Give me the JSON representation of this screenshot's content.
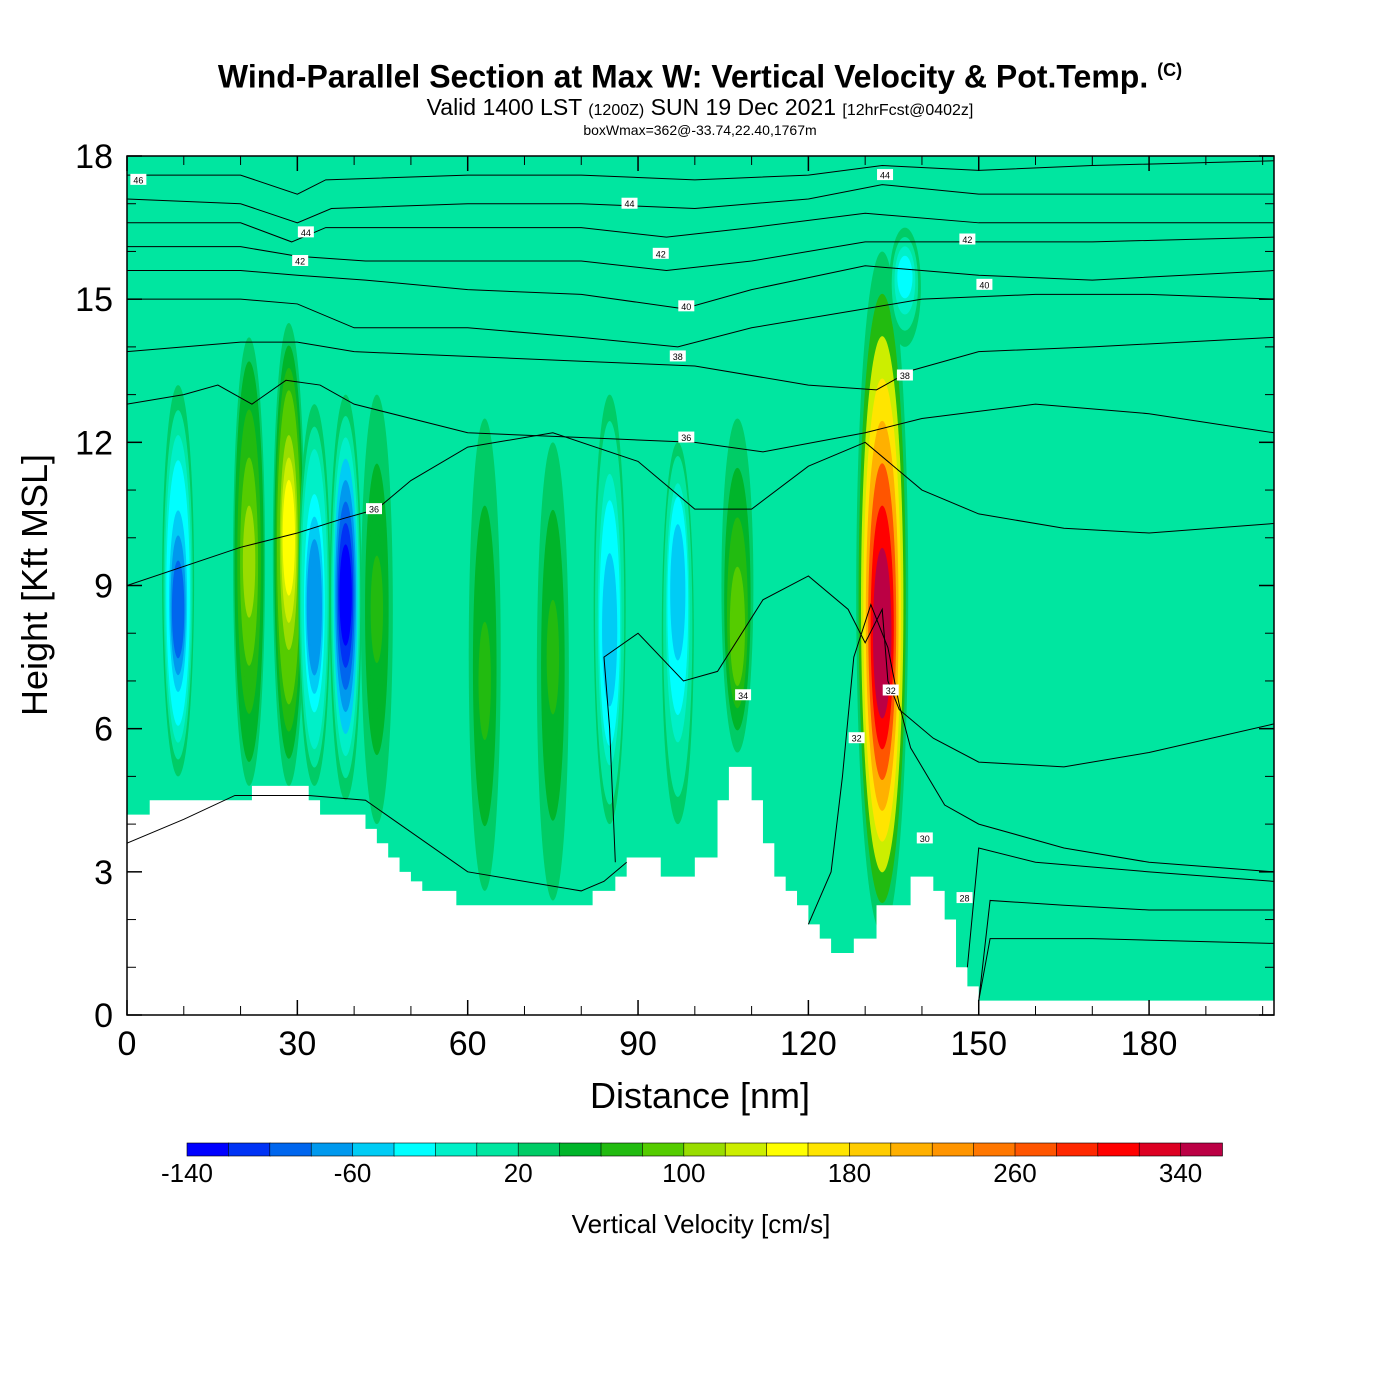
{
  "title": {
    "main": "Wind-Parallel Section at Max W: Vertical Velocity & Pot.Temp.",
    "copyright": "(C)",
    "valid_prefix": "Valid 1400 LST",
    "utc": "(1200Z)",
    "date": "SUN 19 Dec 2021",
    "forecast": "[12hrFcst@0402z]",
    "boxwmax": "boxWmax=362@-33.74,22.40,1767m"
  },
  "chart_data": {
    "type": "heatmap",
    "subtype": "cross-section contour fill with line contours",
    "xlabel": "Distance [nm]",
    "ylabel": "Height [Kft MSL]",
    "xlim": [
      0,
      202
    ],
    "ylim": [
      0,
      18
    ],
    "x_ticks": [
      "0",
      "30",
      "60",
      "90",
      "120",
      "150",
      "180"
    ],
    "y_ticks": [
      "0",
      "3",
      "6",
      "9",
      "12",
      "15",
      "18"
    ],
    "colorbar": {
      "label": "Vertical Velocity [cm/s]",
      "tick_labels": [
        "-140",
        "-60",
        "20",
        "100",
        "180",
        "260",
        "340"
      ],
      "tick_values": [
        -140,
        -60,
        20,
        100,
        180,
        260,
        340
      ],
      "min": -140,
      "step": 20,
      "colors": [
        "#0000ff",
        "#0033f5",
        "#0066ee",
        "#0099ee",
        "#00ccf5",
        "#00ffff",
        "#00f0c8",
        "#00e6a0",
        "#00cc66",
        "#00b52a",
        "#22bb10",
        "#55cc00",
        "#99dd00",
        "#ccee00",
        "#ffff00",
        "#ffe500",
        "#ffcc00",
        "#ffb000",
        "#ff9500",
        "#ff7700",
        "#ff5500",
        "#ff2800",
        "#ff0000",
        "#dd0022",
        "#bb0044"
      ],
      "background_color": "#00e6a0"
    },
    "vertical_velocity_features": [
      {
        "x": 9,
        "z_bottom": 5.0,
        "z_top": 13.2,
        "z_peak": 8.5,
        "w": -90
      },
      {
        "x": 21.5,
        "z_bottom": 4.8,
        "z_top": 14.2,
        "z_peak": 9.5,
        "w": 100
      },
      {
        "x": 28.5,
        "z_bottom": 4.8,
        "z_top": 14.5,
        "z_peak": 10.0,
        "w": 150
      },
      {
        "x": 33,
        "z_bottom": 4.8,
        "z_top": 12.8,
        "z_peak": 8.5,
        "w": -80
      },
      {
        "x": 38.5,
        "z_bottom": 4.5,
        "z_top": 13.0,
        "z_peak": 8.8,
        "w": -140
      },
      {
        "x": 44,
        "z_bottom": 4.0,
        "z_top": 13.0,
        "z_peak": 8.5,
        "w": 60
      },
      {
        "x": 63,
        "z_bottom": 2.6,
        "z_top": 12.5,
        "z_peak": 7.0,
        "w": 60
      },
      {
        "x": 75,
        "z_bottom": 2.4,
        "z_top": 12.0,
        "z_peak": 7.5,
        "w": 60
      },
      {
        "x": 85,
        "z_bottom": 4.0,
        "z_top": 13.0,
        "z_peak": 8.0,
        "w": -60
      },
      {
        "x": 97,
        "z_bottom": 4.0,
        "z_top": 12.0,
        "z_peak": 9.0,
        "w": -60
      },
      {
        "x": 107.5,
        "z_bottom": 5.5,
        "z_top": 12.5,
        "z_peak": 8.0,
        "w": 90
      },
      {
        "x": 133,
        "z_bottom": 1.7,
        "z_top": 16.0,
        "z_peak": 8.0,
        "w": 362
      },
      {
        "x": 137,
        "z_bottom": 14.0,
        "z_top": 16.5,
        "z_peak": 15.5,
        "w": -40
      }
    ],
    "terrain": [
      [
        0,
        4.2
      ],
      [
        4,
        4.2
      ],
      [
        4,
        4.5
      ],
      [
        22,
        4.5
      ],
      [
        22,
        4.8
      ],
      [
        32,
        4.8
      ],
      [
        32,
        4.5
      ],
      [
        34,
        4.5
      ],
      [
        34,
        4.2
      ],
      [
        42,
        4.2
      ],
      [
        42,
        3.9
      ],
      [
        44,
        3.9
      ],
      [
        44,
        3.6
      ],
      [
        46,
        3.6
      ],
      [
        46,
        3.3
      ],
      [
        48,
        3.3
      ],
      [
        48,
        3.0
      ],
      [
        50,
        3.0
      ],
      [
        50,
        2.8
      ],
      [
        52,
        2.8
      ],
      [
        52,
        2.6
      ],
      [
        58,
        2.6
      ],
      [
        58,
        2.3
      ],
      [
        82,
        2.3
      ],
      [
        82,
        2.6
      ],
      [
        86,
        2.6
      ],
      [
        86,
        2.9
      ],
      [
        88,
        2.9
      ],
      [
        88,
        3.3
      ],
      [
        94,
        3.3
      ],
      [
        94,
        2.9
      ],
      [
        100,
        2.9
      ],
      [
        100,
        3.3
      ],
      [
        104,
        3.3
      ],
      [
        104,
        4.5
      ],
      [
        106,
        4.5
      ],
      [
        106,
        5.2
      ],
      [
        110,
        5.2
      ],
      [
        110,
        4.5
      ],
      [
        112,
        4.5
      ],
      [
        112,
        3.6
      ],
      [
        114,
        3.6
      ],
      [
        114,
        2.9
      ],
      [
        116,
        2.9
      ],
      [
        116,
        2.6
      ],
      [
        118,
        2.6
      ],
      [
        118,
        2.3
      ],
      [
        120,
        2.3
      ],
      [
        120,
        1.9
      ],
      [
        122,
        1.9
      ],
      [
        122,
        1.6
      ],
      [
        124,
        1.6
      ],
      [
        124,
        1.3
      ],
      [
        128,
        1.3
      ],
      [
        128,
        1.6
      ],
      [
        132,
        1.6
      ],
      [
        132,
        2.3
      ],
      [
        138,
        2.3
      ],
      [
        138,
        2.9
      ],
      [
        142,
        2.9
      ],
      [
        142,
        2.6
      ],
      [
        144,
        2.6
      ],
      [
        144,
        2.0
      ],
      [
        146,
        2.0
      ],
      [
        146,
        1.0
      ],
      [
        148,
        1.0
      ],
      [
        148,
        0.6
      ],
      [
        150,
        0.6
      ],
      [
        150,
        0.3
      ],
      [
        202,
        0.3
      ]
    ],
    "pot_temp_contours": [
      {
        "points": [
          [
            0,
            3.6
          ],
          [
            10,
            4.1
          ],
          [
            19,
            4.6
          ],
          [
            32,
            4.6
          ],
          [
            42,
            4.5
          ],
          [
            60,
            3.0
          ],
          [
            80,
            2.6
          ],
          [
            84,
            2.8
          ],
          [
            88,
            3.2
          ]
        ]
      },
      {
        "points": [
          [
            86,
            3.2
          ],
          [
            85,
            6.0
          ],
          [
            84,
            7.5
          ],
          [
            90,
            8.0
          ],
          [
            98,
            7.0
          ],
          [
            104,
            7.2
          ],
          [
            112,
            8.7
          ],
          [
            120,
            9.2
          ],
          [
            127,
            8.5
          ],
          [
            130,
            7.8
          ],
          [
            133,
            8.5
          ],
          [
            134,
            7.0
          ],
          [
            136,
            6.4
          ],
          [
            142,
            5.8
          ],
          [
            150,
            5.3
          ],
          [
            165,
            5.2
          ],
          [
            180,
            5.5
          ],
          [
            202,
            6.1
          ]
        ],
        "label": "34",
        "label_at": [
          108.5,
          6.7
        ]
      },
      {
        "points": [
          [
            120,
            1.9
          ],
          [
            124,
            3.0
          ],
          [
            126,
            5.0
          ],
          [
            128,
            7.5
          ],
          [
            131,
            8.6
          ],
          [
            134,
            7.7
          ],
          [
            136,
            6.5
          ],
          [
            138,
            5.6
          ],
          [
            144,
            4.4
          ],
          [
            150,
            4.0
          ],
          [
            165,
            3.5
          ],
          [
            180,
            3.2
          ],
          [
            202,
            3.0
          ]
        ],
        "label": "32",
        "label_at": [
          134.5,
          6.8
        ]
      },
      {
        "points": [
          [
            148,
            1.0
          ],
          [
            150,
            3.5
          ],
          [
            160,
            3.2
          ],
          [
            180,
            3.0
          ],
          [
            202,
            2.8
          ]
        ],
        "label": "30",
        "label_at": [
          140.5,
          3.7
        ]
      },
      {
        "points": [
          [
            150,
            0.3
          ],
          [
            152,
            2.4
          ],
          [
            165,
            2.3
          ],
          [
            180,
            2.2
          ],
          [
            202,
            2.2
          ]
        ],
        "label": "28",
        "label_at": [
          147.5,
          2.45
        ]
      },
      {
        "points": [
          [
            150,
            0.3
          ],
          [
            152,
            1.6
          ],
          [
            170,
            1.6
          ],
          [
            202,
            1.5
          ]
        ]
      },
      {
        "points": [
          [
            0,
            9.0
          ],
          [
            20,
            9.8
          ],
          [
            30,
            10.1
          ],
          [
            38,
            10.4
          ],
          [
            44,
            10.6
          ],
          [
            50,
            11.2
          ],
          [
            60,
            11.9
          ],
          [
            75,
            12.2
          ],
          [
            90,
            11.6
          ],
          [
            100,
            10.6
          ],
          [
            110,
            10.6
          ],
          [
            120,
            11.5
          ],
          [
            130,
            12.0
          ],
          [
            140,
            11.0
          ],
          [
            150,
            10.5
          ],
          [
            165,
            10.2
          ],
          [
            180,
            10.1
          ],
          [
            202,
            10.3
          ]
        ],
        "label": "36",
        "label_at": [
          43.5,
          10.6
        ]
      },
      {
        "points": [
          [
            0,
            12.8
          ],
          [
            10,
            13.0
          ],
          [
            16,
            13.2
          ],
          [
            22,
            12.8
          ],
          [
            28,
            13.3
          ],
          [
            34,
            13.2
          ],
          [
            40,
            12.8
          ],
          [
            60,
            12.2
          ],
          [
            80,
            12.1
          ],
          [
            100,
            12.0
          ],
          [
            112,
            11.8
          ],
          [
            130,
            12.2
          ],
          [
            140,
            12.5
          ],
          [
            160,
            12.8
          ],
          [
            180,
            12.6
          ],
          [
            202,
            12.2
          ]
        ],
        "label": "36",
        "label_at": [
          98.5,
          12.1
        ]
      },
      {
        "points": [
          [
            0,
            13.9
          ],
          [
            20,
            14.1
          ],
          [
            30,
            14.1
          ],
          [
            40,
            13.9
          ],
          [
            60,
            13.8
          ],
          [
            80,
            13.7
          ],
          [
            100,
            13.6
          ],
          [
            120,
            13.2
          ],
          [
            132,
            13.1
          ],
          [
            138,
            13.5
          ],
          [
            150,
            13.9
          ],
          [
            170,
            14.0
          ],
          [
            202,
            14.2
          ]
        ],
        "label": "38",
        "label_at": [
          137,
          13.4
        ]
      },
      {
        "points": [
          [
            0,
            15.0
          ],
          [
            20,
            15.0
          ],
          [
            30,
            14.9
          ],
          [
            40,
            14.4
          ],
          [
            60,
            14.4
          ],
          [
            80,
            14.2
          ],
          [
            97,
            14.0
          ],
          [
            110,
            14.4
          ],
          [
            130,
            14.8
          ],
          [
            140,
            15.0
          ],
          [
            160,
            15.1
          ],
          [
            180,
            15.1
          ],
          [
            202,
            15.0
          ]
        ],
        "label": "38",
        "label_at": [
          97,
          13.8
        ]
      },
      {
        "points": [
          [
            0,
            15.6
          ],
          [
            20,
            15.6
          ],
          [
            30,
            15.5
          ],
          [
            42,
            15.4
          ],
          [
            60,
            15.2
          ],
          [
            80,
            15.1
          ],
          [
            98,
            14.8
          ],
          [
            110,
            15.2
          ],
          [
            130,
            15.7
          ],
          [
            150,
            15.5
          ],
          [
            170,
            15.4
          ],
          [
            202,
            15.6
          ]
        ],
        "label": "40",
        "label_at": [
          98.5,
          14.85
        ]
      },
      {
        "points": [
          [
            0,
            16.1
          ],
          [
            20,
            16.1
          ],
          [
            30,
            15.9
          ],
          [
            42,
            15.8
          ],
          [
            60,
            15.8
          ],
          [
            80,
            15.8
          ],
          [
            95,
            15.6
          ],
          [
            110,
            15.8
          ],
          [
            130,
            16.2
          ],
          [
            150,
            16.2
          ],
          [
            170,
            16.2
          ],
          [
            202,
            16.3
          ]
        ],
        "label": "40",
        "label_at": [
          151,
          15.3
        ]
      },
      {
        "points": [
          [
            0,
            16.6
          ],
          [
            20,
            16.6
          ],
          [
            29,
            16.2
          ],
          [
            35,
            16.5
          ],
          [
            60,
            16.5
          ],
          [
            80,
            16.5
          ],
          [
            95,
            16.3
          ],
          [
            110,
            16.5
          ],
          [
            130,
            16.8
          ],
          [
            150,
            16.6
          ],
          [
            170,
            16.6
          ],
          [
            202,
            16.6
          ]
        ],
        "label": "42",
        "label_at": [
          30.5,
          15.8
        ]
      },
      {
        "points": [
          [
            0,
            17.1
          ],
          [
            20,
            17.0
          ],
          [
            30,
            16.6
          ],
          [
            36,
            16.9
          ],
          [
            60,
            17.0
          ],
          [
            80,
            17.0
          ],
          [
            100,
            16.9
          ],
          [
            120,
            17.1
          ],
          [
            133,
            17.4
          ],
          [
            150,
            17.2
          ],
          [
            170,
            17.2
          ],
          [
            202,
            17.2
          ]
        ],
        "label": "44",
        "label_at": [
          88.5,
          17.0
        ]
      },
      {
        "points": [
          [
            0,
            17.6
          ],
          [
            20,
            17.6
          ],
          [
            30,
            17.2
          ],
          [
            35,
            17.5
          ],
          [
            60,
            17.6
          ],
          [
            80,
            17.6
          ],
          [
            100,
            17.5
          ],
          [
            120,
            17.6
          ],
          [
            133,
            17.8
          ],
          [
            150,
            17.7
          ],
          [
            170,
            17.8
          ],
          [
            202,
            17.9
          ]
        ],
        "label": "44",
        "label_at": [
          133.5,
          17.6
        ]
      }
    ],
    "extra_labels": [
      {
        "label": "46",
        "at": [
          2,
          17.5
        ]
      },
      {
        "label": "44",
        "at": [
          31.5,
          16.4
        ]
      },
      {
        "label": "42",
        "at": [
          94,
          15.95
        ]
      },
      {
        "label": "42",
        "at": [
          148,
          16.25
        ]
      },
      {
        "label": "32",
        "at": [
          128.5,
          5.8
        ]
      }
    ]
  }
}
